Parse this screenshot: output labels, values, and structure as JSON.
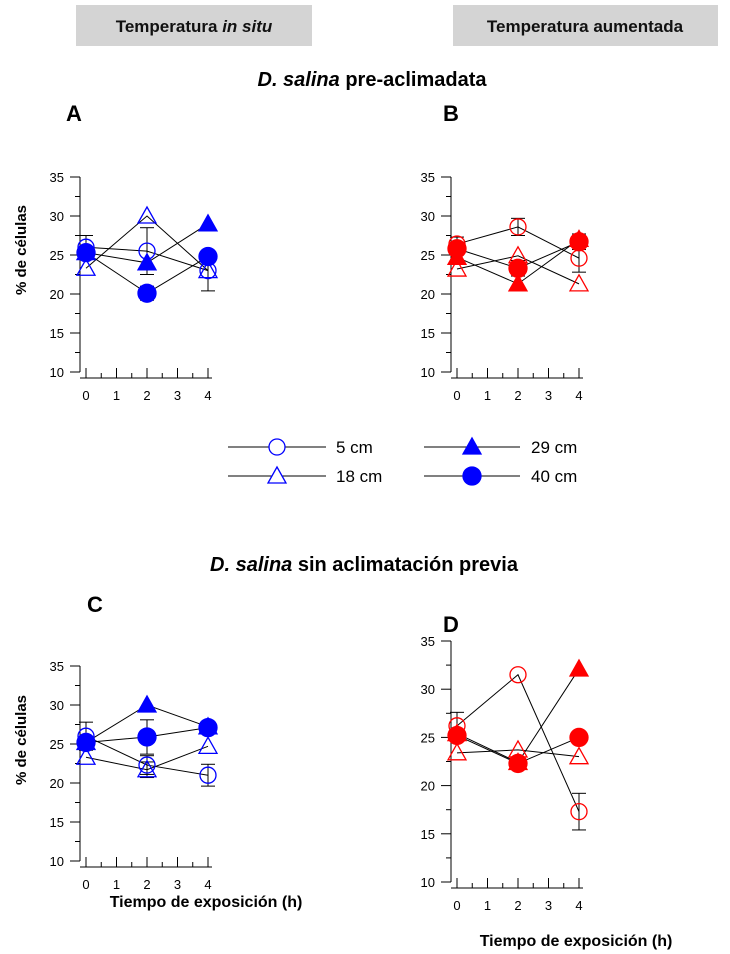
{
  "header": {
    "left_label_main": "Temperatura ",
    "left_label_italic": "in situ",
    "right_label": "Temperatura aumentada"
  },
  "sections": {
    "top_italic": "D. salina",
    "top_rest": " pre-aclimadata",
    "bottom_italic": "D. salina",
    "bottom_rest": " sin aclimatación previa"
  },
  "axes": {
    "ylabel": "% de células",
    "xlabel": "Tiempo de exposición (h)"
  },
  "legend": [
    {
      "label": "5 cm",
      "marker": "circle",
      "filled": false
    },
    {
      "label": "29 cm",
      "marker": "triangle",
      "filled": true
    },
    {
      "label": "18 cm",
      "marker": "triangle",
      "filled": false
    },
    {
      "label": "40 cm",
      "marker": "circle",
      "filled": true
    }
  ],
  "colors": {
    "in_situ": "#0000ff",
    "aumentada": "#ff0000",
    "legend": "#0000ff",
    "header_bg": "#d4d4d4"
  },
  "chart_data": [
    {
      "panel": "A",
      "type": "line",
      "temperature": "Temperatura in situ",
      "ylim": [
        10,
        35
      ],
      "yticks": [
        10,
        15,
        20,
        25,
        30,
        35
      ],
      "xticks": [
        0,
        1,
        2,
        3,
        4
      ],
      "x": [
        0,
        2,
        4
      ],
      "series": [
        {
          "name": "5 cm",
          "values": [
            26.0,
            25.5,
            23.0
          ],
          "err": [
            1.5,
            3.0,
            2.6
          ]
        },
        {
          "name": "18 cm",
          "values": [
            23.3,
            30.0,
            23.0
          ],
          "err": [
            0,
            0,
            0
          ]
        },
        {
          "name": "29 cm",
          "values": [
            25.3,
            24.0,
            29.0
          ],
          "err": [
            0,
            0,
            0
          ]
        },
        {
          "name": "40 cm",
          "values": [
            25.3,
            20.1,
            24.8
          ],
          "err": [
            0,
            0.9,
            0
          ]
        }
      ]
    },
    {
      "panel": "B",
      "type": "line",
      "temperature": "Temperatura aumentada",
      "ylim": [
        10,
        35
      ],
      "yticks": [
        10,
        15,
        20,
        25,
        30,
        35
      ],
      "xticks": [
        0,
        1,
        2,
        3,
        4
      ],
      "x": [
        0,
        2,
        4
      ],
      "series": [
        {
          "name": "5 cm",
          "values": [
            26.4,
            28.6,
            24.6
          ],
          "err": [
            0.9,
            1.1,
            1.8
          ]
        },
        {
          "name": "18 cm",
          "values": [
            23.2,
            24.9,
            21.3
          ],
          "err": [
            0,
            0,
            0
          ]
        },
        {
          "name": "29 cm",
          "values": [
            24.7,
            21.3,
            27.0
          ],
          "err": [
            0,
            0,
            0
          ]
        },
        {
          "name": "40 cm",
          "values": [
            25.8,
            23.3,
            26.7
          ],
          "err": [
            0,
            1.0,
            1.0
          ]
        }
      ]
    },
    {
      "panel": "C",
      "type": "line",
      "temperature": "Temperatura in situ",
      "ylim": [
        10,
        35
      ],
      "yticks": [
        10,
        15,
        20,
        25,
        30,
        35
      ],
      "xticks": [
        0,
        1,
        2,
        3,
        4
      ],
      "x": [
        0,
        2,
        4
      ],
      "series": [
        {
          "name": "5 cm",
          "values": [
            26.0,
            22.3,
            21.0
          ],
          "err": [
            1.8,
            1.2,
            1.4
          ]
        },
        {
          "name": "18 cm",
          "values": [
            23.3,
            21.7,
            24.7
          ],
          "err": [
            0,
            1.0,
            0
          ]
        },
        {
          "name": "29 cm",
          "values": [
            25.2,
            30.0,
            27.2
          ],
          "err": [
            0,
            0,
            0
          ]
        },
        {
          "name": "40 cm",
          "values": [
            25.2,
            25.9,
            27.1
          ],
          "err": [
            0,
            2.2,
            0
          ]
        }
      ]
    },
    {
      "panel": "D",
      "type": "line",
      "temperature": "Temperatura aumentada",
      "ylim": [
        10,
        35
      ],
      "yticks": [
        10,
        15,
        20,
        25,
        30,
        35
      ],
      "xticks": [
        0,
        1,
        2,
        3,
        4
      ],
      "x": [
        0,
        2,
        4
      ],
      "series": [
        {
          "name": "5 cm",
          "values": [
            26.2,
            31.5,
            17.3
          ],
          "err": [
            1.4,
            0,
            1.9
          ]
        },
        {
          "name": "18 cm",
          "values": [
            23.4,
            23.7,
            23.0
          ],
          "err": [
            0,
            0,
            0
          ]
        },
        {
          "name": "29 cm",
          "values": [
            25.4,
            22.4,
            32.1
          ],
          "err": [
            0,
            0,
            0
          ]
        },
        {
          "name": "40 cm",
          "values": [
            25.2,
            22.3,
            25.0
          ],
          "err": [
            0,
            0,
            0
          ]
        }
      ]
    }
  ]
}
